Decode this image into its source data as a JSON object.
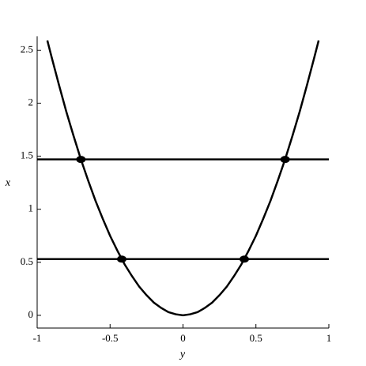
{
  "chart_data": {
    "type": "line",
    "xlabel": "y",
    "ylabel": "x",
    "xlim": [
      -1,
      1
    ],
    "ylim": [
      -0.12,
      2.63
    ],
    "xticks": [
      -1,
      -0.5,
      0,
      0.5,
      1
    ],
    "yticks": [
      0,
      0.5,
      1,
      1.5,
      2,
      2.5
    ],
    "series": [
      {
        "kind": "line",
        "color": "#000000",
        "x": [
          -0.93,
          -0.9,
          -0.85,
          -0.8,
          -0.75,
          -0.7,
          -0.65,
          -0.6,
          -0.55,
          -0.5,
          -0.45,
          -0.4,
          -0.35,
          -0.3,
          -0.25,
          -0.2,
          -0.15,
          -0.1,
          -0.05,
          0,
          0.05,
          0.1,
          0.15,
          0.2,
          0.25,
          0.3,
          0.35,
          0.4,
          0.45,
          0.5,
          0.55,
          0.6,
          0.65,
          0.7,
          0.75,
          0.8,
          0.85,
          0.9,
          0.93
        ],
        "values": [
          2.59,
          2.43,
          2.17,
          1.92,
          1.69,
          1.47,
          1.27,
          1.08,
          0.91,
          0.75,
          0.61,
          0.48,
          0.37,
          0.27,
          0.19,
          0.12,
          0.07,
          0.03,
          0.01,
          0,
          0.01,
          0.03,
          0.07,
          0.12,
          0.19,
          0.27,
          0.37,
          0.48,
          0.61,
          0.75,
          0.91,
          1.08,
          1.27,
          1.47,
          1.69,
          1.92,
          2.17,
          2.43,
          2.59
        ]
      },
      {
        "kind": "line",
        "color": "#000000",
        "x": [
          -1,
          1
        ],
        "values": [
          1.47,
          1.47
        ]
      },
      {
        "kind": "line",
        "color": "#000000",
        "x": [
          -1,
          1
        ],
        "values": [
          0.53,
          0.53
        ]
      },
      {
        "kind": "scatter",
        "color": "#000000",
        "x": [
          -0.7,
          0.7,
          -0.42,
          0.42
        ],
        "values": [
          1.47,
          1.47,
          0.53,
          0.53
        ]
      }
    ]
  }
}
